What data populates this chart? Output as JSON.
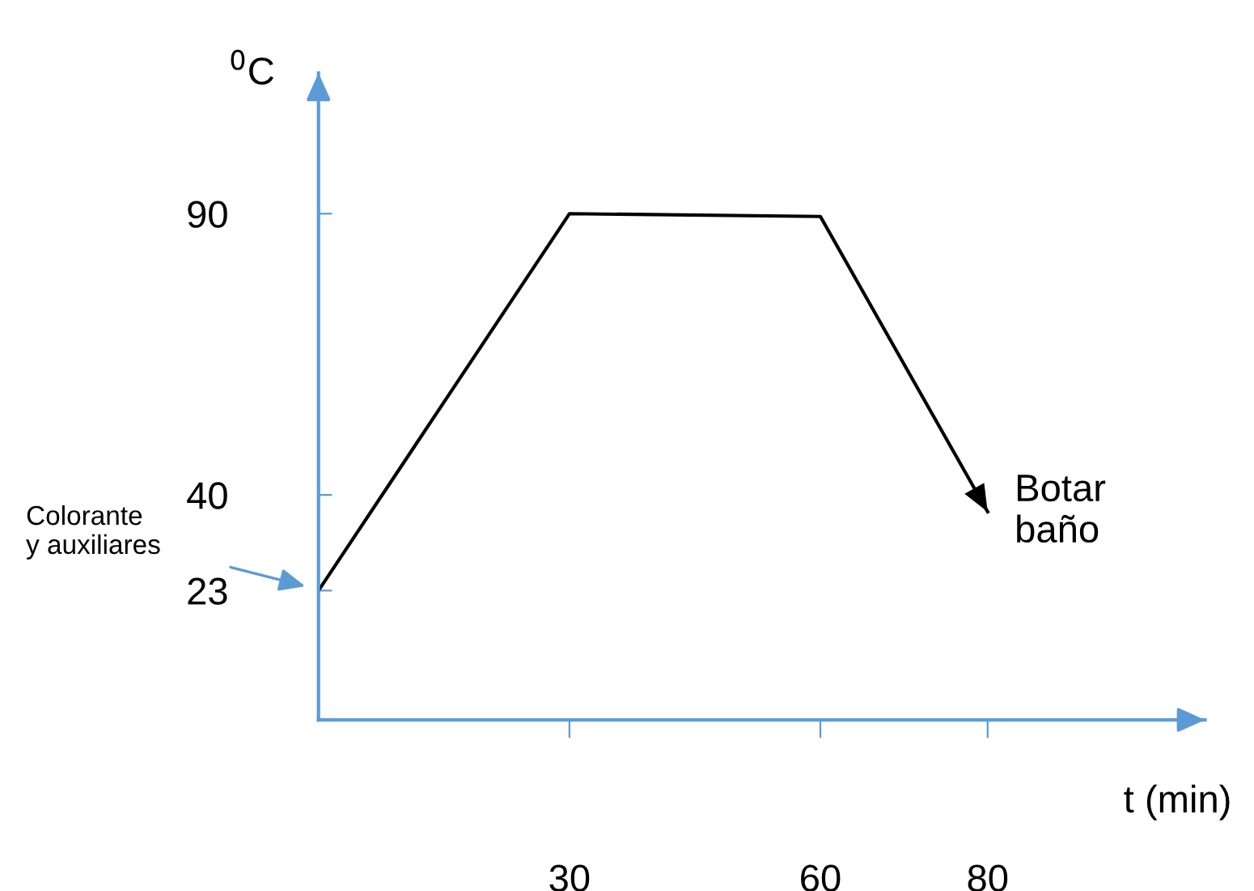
{
  "chart_data": {
    "type": "line",
    "xlabel": "t (min)",
    "ylabel": "$^{0}$C",
    "x": [
      0,
      30,
      60,
      80
    ],
    "series": [
      {
        "color": "#000000",
        "values": [
          23,
          90,
          89.5,
          37
        ]
      }
    ],
    "xlim": [
      0,
      106
    ],
    "ylim": [
      0,
      115
    ],
    "xticks": [
      30,
      60,
      80
    ],
    "yticks": [
      23,
      40,
      90
    ],
    "grid": false,
    "legend": false,
    "marker": "none",
    "line_style": "solid",
    "annotations": [
      {
        "text": "Botar\nbaño",
        "x": 80,
        "y": 37
      },
      "Colorante\ny auxiliares"
    ]
  }
}
